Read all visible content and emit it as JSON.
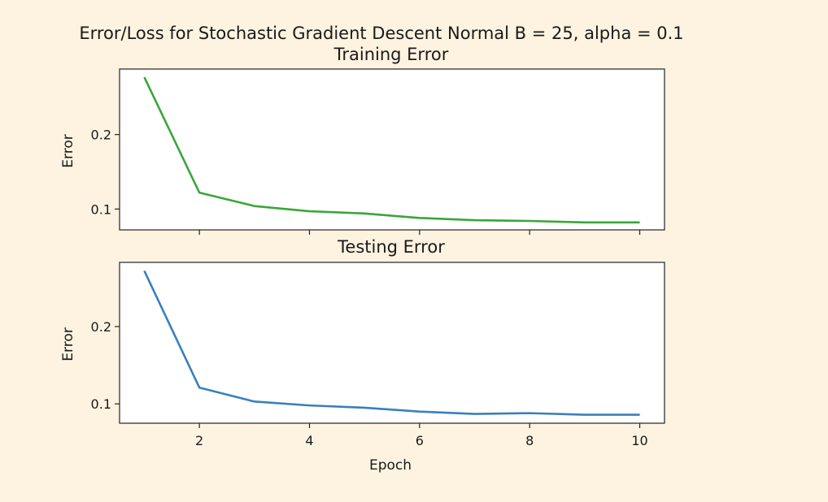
{
  "figure": {
    "title": "Error/Loss for Stochastic Gradient Descent Normal B = 25, alpha = 0.1"
  },
  "chart_data": [
    {
      "type": "line",
      "title": "Training Error",
      "xlabel": "",
      "ylabel": "Error",
      "x": [
        1,
        2,
        3,
        4,
        5,
        6,
        7,
        8,
        9,
        10
      ],
      "series": [
        {
          "values": [
            0.277,
            0.122,
            0.104,
            0.097,
            0.094,
            0.088,
            0.085,
            0.084,
            0.082,
            0.082
          ]
        }
      ],
      "xlim": [
        0.55,
        10.45
      ],
      "ylim": [
        0.072,
        0.288
      ],
      "xticks": [
        2,
        4,
        6,
        8,
        10
      ],
      "xtick_labels_visible": false,
      "yticks": [
        0.1,
        0.2
      ],
      "ytick_labels": [
        "0.1",
        "0.2"
      ],
      "grid": false,
      "color": "#3aa63a"
    },
    {
      "type": "line",
      "title": "Testing Error",
      "xlabel": "Epoch",
      "ylabel": "Error",
      "x": [
        1,
        2,
        3,
        4,
        5,
        6,
        7,
        8,
        9,
        10
      ],
      "series": [
        {
          "values": [
            0.272,
            0.121,
            0.103,
            0.098,
            0.095,
            0.09,
            0.087,
            0.088,
            0.086,
            0.086
          ]
        }
      ],
      "xlim": [
        0.55,
        10.45
      ],
      "ylim": [
        0.075,
        0.283
      ],
      "xticks": [
        2,
        4,
        6,
        8,
        10
      ],
      "xtick_labels": [
        "2",
        "4",
        "6",
        "8",
        "10"
      ],
      "yticks": [
        0.1,
        0.2
      ],
      "ytick_labels": [
        "0.1",
        "0.2"
      ],
      "grid": false,
      "color": "#3a7fbd"
    }
  ]
}
